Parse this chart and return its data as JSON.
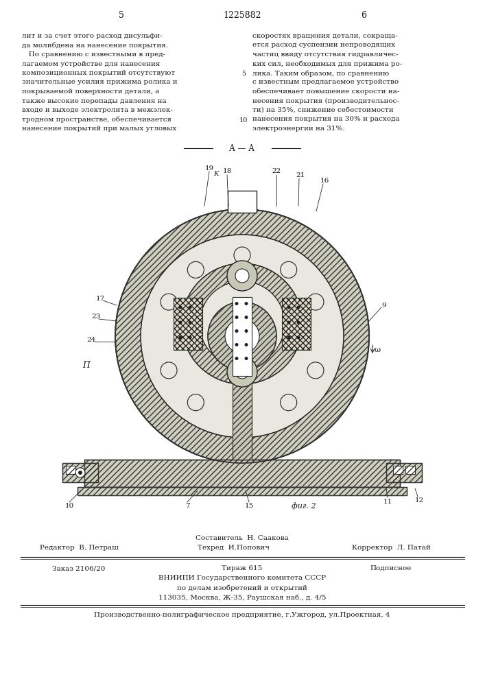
{
  "bg_color": "#ffffff",
  "page_color": "#ffffff",
  "text_color": "#1a1a1a",
  "page_number_left": "5",
  "patent_number": "1225882",
  "page_number_right": "6",
  "col_left_text": [
    "лит и за счет этого расход дисульфи-",
    "да молибдена на нанесение покрытия.",
    "   По сравнению с известными в пред-",
    "лагаемом устройстве для нанесения",
    "композиционных покрытий отсутствуют",
    "значительные усилия прижима ролика и",
    "покрываемой поверхности детали, а",
    "также высокие перепады давления на",
    "входе и выходе электролита в межэлек-",
    "тродном пространстве, обеспечивается",
    "нанесение покрытий при малых угловых"
  ],
  "col_right_text": [
    "скоростях вращения детали, сокраща-",
    "ется расход суспензии непроводящих",
    "частиц ввиду отсутствия гидравличес-",
    "ких сил, необходимых для прижима ро-",
    "лика. Таким образом, по сравнению",
    "с известным предлагаемое устройство",
    "обеспечивает повышение скорости на-",
    "несения покрытия (производительнос-",
    "ти) на 35%, снижение себестоимости",
    "нанесения покрытия на 30% и расхода",
    "электроэнергии на 31%."
  ],
  "footer_composer": "Составитель  Н. Саакова",
  "footer_editor": "Редактор  В. Петраш",
  "footer_techred": "Техред  И.Попович",
  "footer_corrector": "Корректор  Л. Патай",
  "footer_order": "Заказ 2106/20",
  "footer_tirazh": "Тираж 615",
  "footer_podpisnoe": "Подписное",
  "footer_vniiipi": "ВНИИПИ Государственного комитета СССР",
  "footer_po_delam": "по делам изобретений и открытий",
  "footer_address": "113035, Москва, Ж-35, Раушская наб., д. 4/5",
  "footer_company": "Производственно-полиграфическое предприятие, г.Ужгород, ул.Проектная, 4"
}
